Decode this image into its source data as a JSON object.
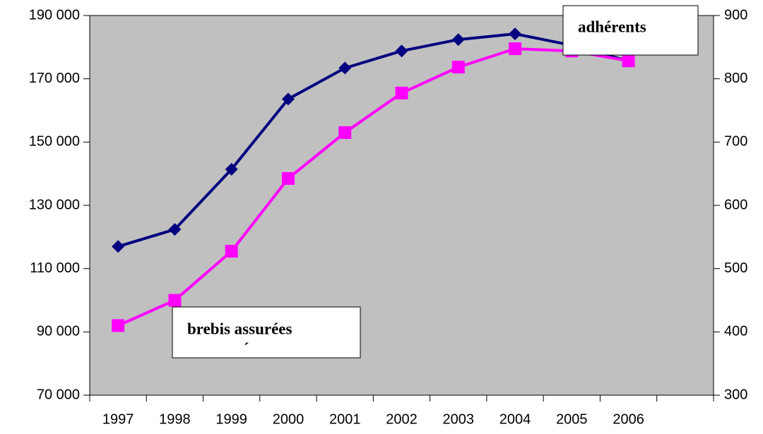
{
  "chart_data": {
    "type": "line",
    "categories": [
      "1997",
      "1998",
      "1999",
      "2000",
      "2001",
      "2002",
      "2003",
      "2004",
      "2005",
      "2006",
      null
    ],
    "series": [
      {
        "name": "adhérents",
        "color": "#000080",
        "marker": "diamond",
        "axis": "y2",
        "values": [
          535,
          562,
          657,
          768,
          817,
          844,
          862,
          871,
          853,
          828,
          null
        ]
      },
      {
        "name": "brebis assurées",
        "color": "#ff00ff",
        "marker": "square",
        "values": [
          92000,
          100000,
          115500,
          138500,
          153000,
          165500,
          173700,
          179500,
          178800,
          175700,
          null
        ]
      }
    ],
    "annotation": "´",
    "ylim": [
      70000,
      190000
    ],
    "yticks": [
      {
        "value": 70000,
        "label": "70 000"
      },
      {
        "value": 90000,
        "label": "90 000"
      },
      {
        "value": 110000,
        "label": "110 000"
      },
      {
        "value": 130000,
        "label": "130 000"
      },
      {
        "value": 150000,
        "label": "150 000"
      },
      {
        "value": 170000,
        "label": "170 000"
      },
      {
        "value": 190000,
        "label": "190 000"
      }
    ],
    "y2lim": [
      300,
      900
    ],
    "y2ticks": [
      300,
      400,
      500,
      600,
      700,
      800,
      900
    ],
    "background": "#c0c0c0"
  }
}
